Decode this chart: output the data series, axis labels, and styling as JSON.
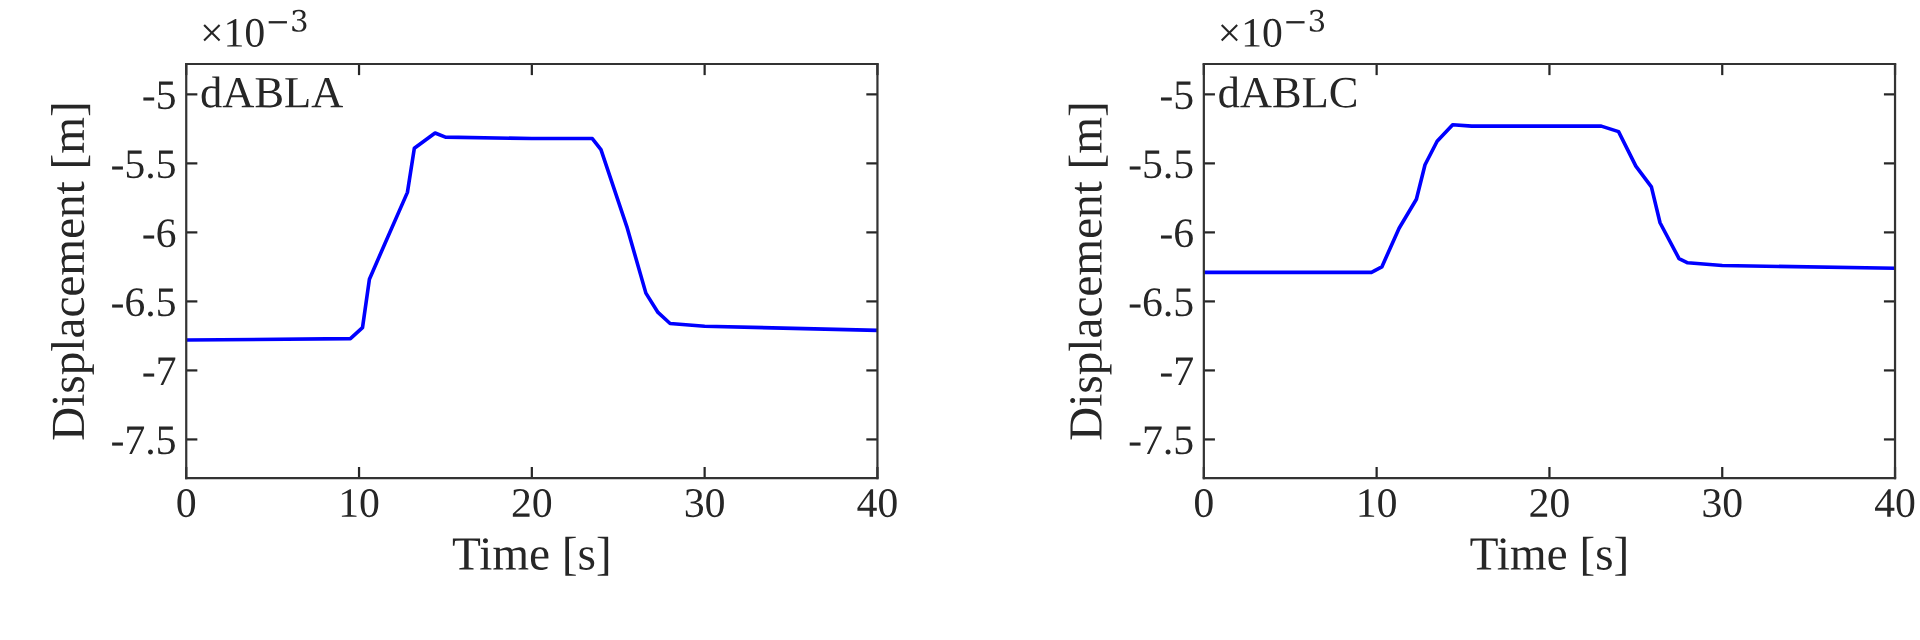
{
  "chart_data": [
    {
      "type": "line",
      "xlabel": "Time [s]",
      "ylabel": "Displacement [m]",
      "annotations": [
        "×10$^{−3}$",
        "dABLA"
      ],
      "xlim": [
        0,
        40
      ],
      "xticks": [
        0,
        10,
        20,
        30,
        40
      ],
      "ylim": [
        -7.78,
        -4.78
      ],
      "yticks": [
        -7.5,
        -7,
        -6.5,
        -6,
        -5.5,
        -5
      ],
      "series": [
        {
          "color": "#0000ff",
          "x": [
            0,
            9.5,
            10.2,
            10.6,
            11.5,
            12.8,
            13.2,
            14.4,
            15,
            20,
            23.5,
            24,
            25.5,
            26.6,
            27.3,
            28,
            30,
            40
          ],
          "values": [
            -6.78,
            -6.77,
            -6.69,
            -6.34,
            -6.08,
            -5.71,
            -5.39,
            -5.28,
            -5.31,
            -5.32,
            -5.32,
            -5.4,
            -5.96,
            -6.44,
            -6.58,
            -6.66,
            -6.68,
            -6.71
          ]
        }
      ]
    },
    {
      "type": "line",
      "xlabel": "Time [s]",
      "ylabel": "Displacement [m]",
      "annotations": [
        "×10$^{−3}$",
        "dABLC"
      ],
      "xlim": [
        0,
        40
      ],
      "xticks": [
        0,
        10,
        20,
        30,
        40
      ],
      "ylim": [
        -7.78,
        -4.78
      ],
      "yticks": [
        -7.5,
        -7,
        -6.5,
        -6,
        -5.5,
        -5
      ],
      "series": [
        {
          "color": "#0000ff",
          "x": [
            0,
            9.7,
            10.3,
            11.3,
            12.3,
            12.8,
            13.5,
            14.4,
            15.5,
            20,
            23,
            24,
            25,
            25.9,
            26.4,
            27.5,
            28,
            30,
            40
          ],
          "values": [
            -6.29,
            -6.29,
            -6.25,
            -5.97,
            -5.76,
            -5.51,
            -5.34,
            -5.22,
            -5.23,
            -5.23,
            -5.23,
            -5.27,
            -5.52,
            -5.67,
            -5.93,
            -6.19,
            -6.22,
            -6.24,
            -6.26
          ]
        }
      ]
    }
  ]
}
